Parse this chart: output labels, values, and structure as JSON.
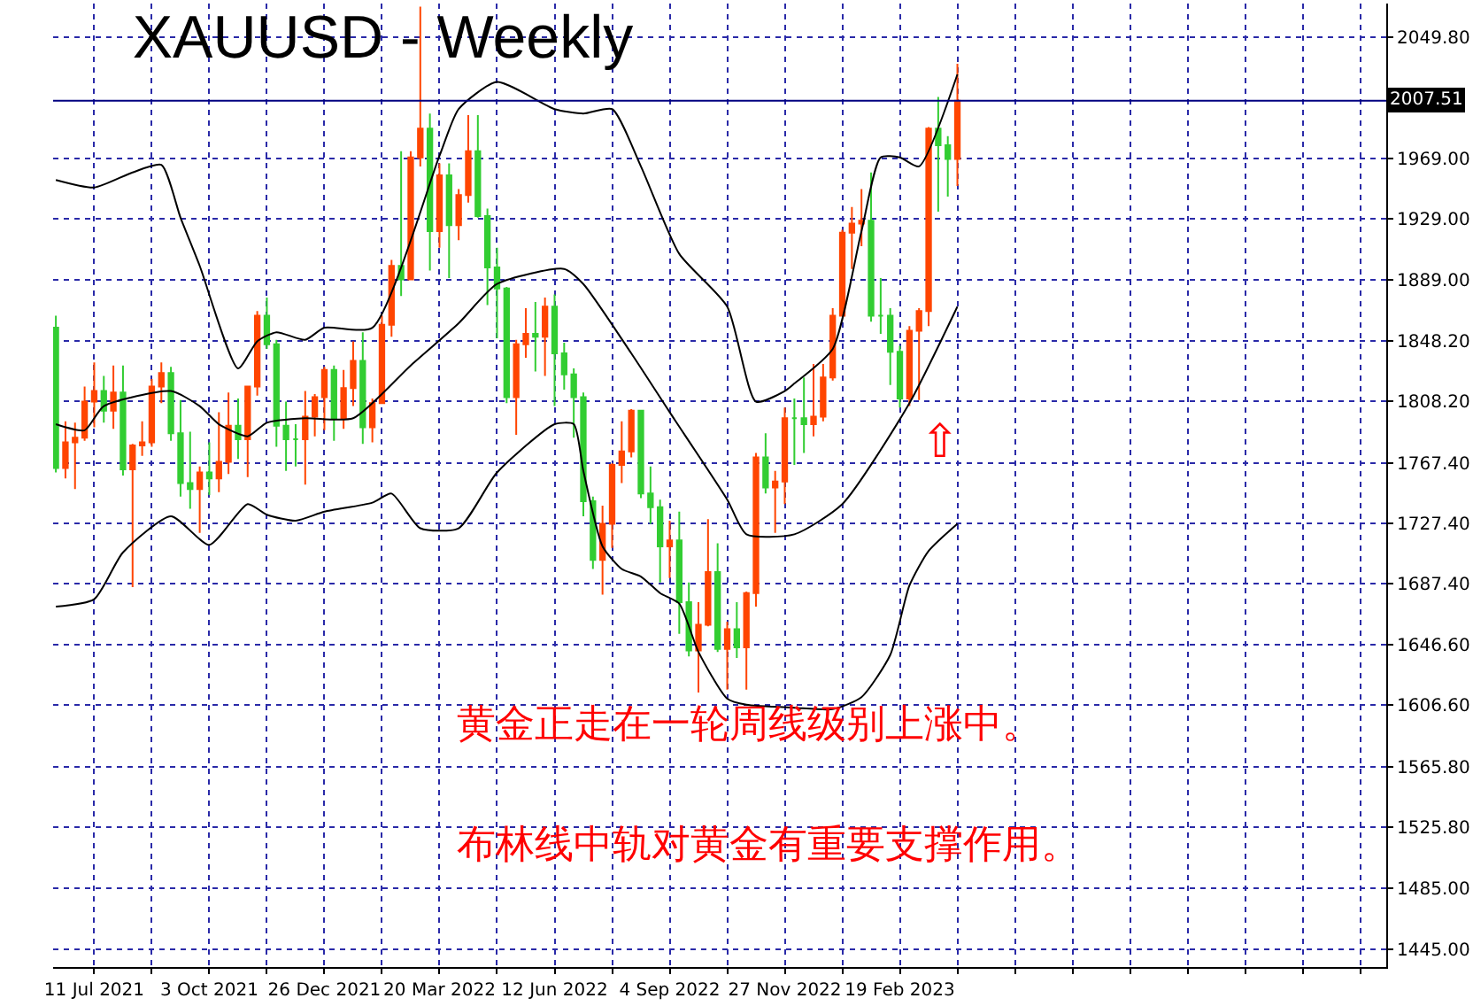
{
  "chart_data": {
    "type": "candlestick",
    "title": "XAUUSD - Weekly",
    "x": [
      "2021-06-13",
      "2021-06-20",
      "2021-06-27",
      "2021-07-04",
      "2021-07-11",
      "2021-07-18",
      "2021-07-25",
      "2021-08-01",
      "2021-08-08",
      "2021-08-15",
      "2021-08-22",
      "2021-08-29",
      "2021-09-05",
      "2021-09-12",
      "2021-09-19",
      "2021-09-26",
      "2021-10-03",
      "2021-10-10",
      "2021-10-17",
      "2021-10-24",
      "2021-10-31",
      "2021-11-07",
      "2021-11-14",
      "2021-11-21",
      "2021-11-28",
      "2021-12-05",
      "2021-12-12",
      "2021-12-19",
      "2021-12-26",
      "2022-01-02",
      "2022-01-09",
      "2022-01-16",
      "2022-01-23",
      "2022-01-30",
      "2022-02-06",
      "2022-02-13",
      "2022-02-20",
      "2022-02-27",
      "2022-03-06",
      "2022-03-13",
      "2022-03-20",
      "2022-03-27",
      "2022-04-03",
      "2022-04-10",
      "2022-04-17",
      "2022-04-24",
      "2022-05-01",
      "2022-05-08",
      "2022-05-15",
      "2022-05-22",
      "2022-05-29",
      "2022-06-05",
      "2022-06-12",
      "2022-06-19",
      "2022-06-26",
      "2022-07-03",
      "2022-07-10",
      "2022-07-17",
      "2022-07-24",
      "2022-07-31",
      "2022-08-07",
      "2022-08-14",
      "2022-08-21",
      "2022-08-28",
      "2022-09-04",
      "2022-09-11",
      "2022-09-18",
      "2022-09-25",
      "2022-10-02",
      "2022-10-09",
      "2022-10-16",
      "2022-10-23",
      "2022-10-30",
      "2022-11-06",
      "2022-11-13",
      "2022-11-20",
      "2022-11-27",
      "2022-12-04",
      "2022-12-11",
      "2022-12-18",
      "2022-12-25",
      "2023-01-01",
      "2023-01-08",
      "2023-01-15",
      "2023-01-22",
      "2023-01-29",
      "2023-02-05",
      "2023-02-12",
      "2023-02-19",
      "2023-02-26",
      "2023-03-05",
      "2023-03-12",
      "2023-03-19",
      "2023-03-26",
      "2023-04-02"
    ],
    "ohlc": [
      [
        1857,
        1865,
        1761,
        1764
      ],
      [
        1764,
        1795,
        1757,
        1781
      ],
      [
        1781,
        1794,
        1750,
        1784
      ],
      [
        1784,
        1818,
        1782,
        1808
      ],
      [
        1808,
        1834,
        1791,
        1815
      ],
      [
        1815,
        1825,
        1794,
        1802
      ],
      [
        1802,
        1832,
        1790,
        1814
      ],
      [
        1814,
        1832,
        1759,
        1763
      ],
      [
        1763,
        1780,
        1685,
        1779
      ],
      [
        1779,
        1795,
        1772,
        1781
      ],
      [
        1781,
        1823,
        1778,
        1818
      ],
      [
        1818,
        1834,
        1807,
        1827
      ],
      [
        1827,
        1831,
        1782,
        1787
      ],
      [
        1787,
        1809,
        1745,
        1754
      ],
      [
        1754,
        1788,
        1737,
        1750
      ],
      [
        1750,
        1765,
        1721,
        1761
      ],
      [
        1761,
        1781,
        1746,
        1757
      ],
      [
        1757,
        1801,
        1748,
        1768
      ],
      [
        1768,
        1814,
        1760,
        1792
      ],
      [
        1792,
        1810,
        1770,
        1783
      ],
      [
        1783,
        1818,
        1758,
        1818
      ],
      [
        1818,
        1868,
        1812,
        1865
      ],
      [
        1865,
        1877,
        1843,
        1846
      ],
      [
        1846,
        1849,
        1778,
        1792
      ],
      [
        1792,
        1808,
        1762,
        1783
      ],
      [
        1783,
        1793,
        1765,
        1783
      ],
      [
        1783,
        1815,
        1753,
        1798
      ],
      [
        1798,
        1813,
        1785,
        1811
      ],
      [
        1811,
        1831,
        1789,
        1829
      ],
      [
        1829,
        1832,
        1782,
        1797
      ],
      [
        1797,
        1829,
        1790,
        1817
      ],
      [
        1817,
        1848,
        1805,
        1835
      ],
      [
        1835,
        1854,
        1780,
        1791
      ],
      [
        1791,
        1810,
        1781,
        1807
      ],
      [
        1807,
        1865,
        1807,
        1859
      ],
      [
        1859,
        1902,
        1851,
        1898
      ],
      [
        1898,
        1974,
        1878,
        1889
      ],
      [
        1889,
        1974,
        1889,
        1970
      ],
      [
        1970,
        2070,
        1964,
        1989
      ],
      [
        1989,
        1999,
        1895,
        1921
      ],
      [
        1921,
        1966,
        1910,
        1958
      ],
      [
        1958,
        1966,
        1890,
        1925
      ],
      [
        1925,
        1949,
        1915,
        1945
      ],
      [
        1945,
        1998,
        1940,
        1974
      ],
      [
        1974,
        1998,
        1930,
        1931
      ],
      [
        1931,
        1936,
        1872,
        1897
      ],
      [
        1897,
        1910,
        1850,
        1883
      ],
      [
        1883,
        1884,
        1807,
        1811
      ],
      [
        1811,
        1849,
        1786,
        1846
      ],
      [
        1846,
        1870,
        1837,
        1853
      ],
      [
        1853,
        1874,
        1828,
        1851
      ],
      [
        1851,
        1877,
        1825,
        1871
      ],
      [
        1871,
        1879,
        1805,
        1840
      ],
      [
        1840,
        1847,
        1816,
        1826
      ],
      [
        1826,
        1830,
        1784,
        1811
      ],
      [
        1811,
        1814,
        1732,
        1742
      ],
      [
        1742,
        1745,
        1697,
        1703
      ],
      [
        1703,
        1739,
        1680,
        1727
      ],
      [
        1727,
        1767,
        1711,
        1766
      ],
      [
        1766,
        1795,
        1754,
        1775
      ],
      [
        1775,
        1803,
        1771,
        1802
      ],
      [
        1802,
        1802,
        1744,
        1747
      ],
      [
        1747,
        1765,
        1727,
        1738
      ],
      [
        1738,
        1743,
        1688,
        1712
      ],
      [
        1712,
        1729,
        1691,
        1716
      ],
      [
        1716,
        1735,
        1654,
        1675
      ],
      [
        1675,
        1688,
        1639,
        1643
      ],
      [
        1643,
        1675,
        1615,
        1660
      ],
      [
        1660,
        1730,
        1659,
        1695
      ],
      [
        1695,
        1714,
        1642,
        1644
      ],
      [
        1644,
        1662,
        1617,
        1657
      ],
      [
        1657,
        1675,
        1638,
        1645
      ],
      [
        1645,
        1682,
        1617,
        1681
      ],
      [
        1681,
        1774,
        1672,
        1771
      ],
      [
        1771,
        1787,
        1747,
        1751
      ],
      [
        1751,
        1762,
        1721,
        1755
      ],
      [
        1755,
        1804,
        1740,
        1797
      ],
      [
        1797,
        1810,
        1766,
        1797
      ],
      [
        1797,
        1824,
        1774,
        1793
      ],
      [
        1793,
        1833,
        1785,
        1798
      ],
      [
        1798,
        1833,
        1795,
        1824
      ],
      [
        1824,
        1870,
        1822,
        1865
      ],
      [
        1865,
        1922,
        1865,
        1920
      ],
      [
        1920,
        1937,
        1896,
        1926
      ],
      [
        1926,
        1949,
        1911,
        1928
      ],
      [
        1928,
        1960,
        1861,
        1865
      ],
      [
        1865,
        1890,
        1853,
        1865
      ],
      [
        1865,
        1870,
        1819,
        1841
      ],
      [
        1841,
        1845,
        1804,
        1810
      ],
      [
        1810,
        1858,
        1805,
        1855
      ],
      [
        1855,
        1870,
        1809,
        1868
      ],
      [
        1868,
        1990,
        1858,
        1989
      ],
      [
        1989,
        2010,
        1934,
        1978
      ],
      [
        1978,
        1984,
        1944,
        1969
      ],
      [
        1969,
        2032,
        1951,
        2007.51
      ]
    ],
    "colors": [
      "#32cd32",
      "#ff4500",
      "#ff4500",
      "#ff4500",
      "#ff4500",
      "#32cd32",
      "#ff4500",
      "#32cd32",
      "#ff4500",
      "#ff4500",
      "#ff4500",
      "#ff4500",
      "#32cd32",
      "#32cd32",
      "#32cd32",
      "#ff4500",
      "#32cd32",
      "#ff4500",
      "#ff4500",
      "#32cd32",
      "#ff4500",
      "#ff4500",
      "#32cd32",
      "#32cd32",
      "#32cd32",
      "#32cd32",
      "#ff4500",
      "#ff4500",
      "#ff4500",
      "#32cd32",
      "#ff4500",
      "#ff4500",
      "#32cd32",
      "#ff4500",
      "#ff4500",
      "#ff4500",
      "#32cd32",
      "#ff4500",
      "#ff4500",
      "#32cd32",
      "#ff4500",
      "#32cd32",
      "#ff4500",
      "#ff4500",
      "#32cd32",
      "#32cd32",
      "#32cd32",
      "#32cd32",
      "#ff4500",
      "#ff4500",
      "#32cd32",
      "#ff4500",
      "#32cd32",
      "#32cd32",
      "#32cd32",
      "#32cd32",
      "#32cd32",
      "#ff4500",
      "#ff4500",
      "#ff4500",
      "#ff4500",
      "#32cd32",
      "#32cd32",
      "#32cd32",
      "#ff4500",
      "#32cd32",
      "#32cd32",
      "#ff4500",
      "#ff4500",
      "#32cd32",
      "#ff4500",
      "#32cd32",
      "#ff4500",
      "#ff4500",
      "#32cd32",
      "#ff4500",
      "#ff4500",
      "#32cd32",
      "#32cd32",
      "#ff4500",
      "#ff4500",
      "#ff4500",
      "#ff4500",
      "#ff4500",
      "#ff4500",
      "#32cd32",
      "#32cd32",
      "#32cd32",
      "#32cd32",
      "#ff4500",
      "#ff4500",
      "#ff4500",
      "#32cd32",
      "#32cd32",
      "#ff4500"
    ],
    "series": [
      {
        "type": "line",
        "color": "#000000",
        "x": [
          "2021-06-13",
          "2021-07-11",
          "2021-08-08",
          "2021-08-29",
          "2021-09-12",
          "2021-09-26",
          "2021-10-24",
          "2021-11-07",
          "2021-11-21",
          "2021-12-12",
          "2021-12-26",
          "2022-01-30",
          "2022-03-20",
          "2022-04-03",
          "2022-05-01",
          "2022-06-12",
          "2022-07-03",
          "2022-07-24",
          "2022-08-14",
          "2022-09-11",
          "2022-10-16",
          "2022-11-06",
          "2022-11-27",
          "2022-12-04",
          "2023-01-01",
          "2023-01-22",
          "2023-02-05",
          "2023-02-19",
          "2023-03-05",
          "2023-04-02"
        ],
        "values": [
          1955,
          1950,
          1960,
          1965,
          1930,
          1898,
          1830,
          1848,
          1854,
          1849,
          1857,
          1857,
          1971,
          2002,
          2020,
          2002,
          1999,
          2002,
          1964,
          1906,
          1871,
          1808,
          1815,
          1820,
          1843,
          1921,
          1970,
          1970,
          1964,
          2025
        ]
      },
      {
        "type": "line",
        "color": "#000000",
        "x": [
          "2021-06-13",
          "2021-07-04",
          "2021-07-18",
          "2021-09-05",
          "2021-09-26",
          "2021-10-10",
          "2021-10-31",
          "2021-11-14",
          "2021-12-12",
          "2022-01-16",
          "2022-02-27",
          "2022-04-03",
          "2022-05-01",
          "2022-06-19",
          "2022-07-03",
          "2022-08-07",
          "2022-09-04",
          "2022-10-16",
          "2022-10-30",
          "2022-12-04",
          "2023-01-08",
          "2023-02-26",
          "2023-04-02"
        ],
        "values": [
          1793,
          1789,
          1805,
          1815,
          1805,
          1793,
          1785,
          1794,
          1797,
          1797,
          1832,
          1860,
          1886,
          1896,
          1886,
          1840,
          1801,
          1743,
          1720,
          1720,
          1740,
          1807,
          1871
        ]
      },
      {
        "type": "line",
        "color": "#000000",
        "x": [
          "2021-06-13",
          "2021-07-11",
          "2021-08-01",
          "2021-09-05",
          "2021-10-03",
          "2021-10-31",
          "2021-11-14",
          "2021-12-05",
          "2021-12-26",
          "2022-01-30",
          "2022-02-13",
          "2022-03-06",
          "2022-04-03",
          "2022-05-01",
          "2022-06-12",
          "2022-06-26",
          "2022-07-03",
          "2022-07-17",
          "2022-07-31",
          "2022-08-14",
          "2022-08-28",
          "2022-09-11",
          "2022-09-25",
          "2022-10-16",
          "2022-10-30",
          "2022-12-04",
          "2023-01-01",
          "2023-01-22",
          "2023-02-12",
          "2023-02-26",
          "2023-03-12",
          "2023-04-02"
        ],
        "values": [
          1672,
          1677,
          1708,
          1732,
          1713,
          1740,
          1733,
          1729,
          1735,
          1741,
          1747,
          1724,
          1724,
          1761,
          1793,
          1793,
          1762,
          1712,
          1697,
          1692,
          1681,
          1674,
          1642,
          1611,
          1607,
          1605,
          1604,
          1612,
          1640,
          1686,
          1709,
          1727
        ]
      }
    ],
    "xlim": [
      "2021-06-11",
      "2024-02-09"
    ],
    "xticks": [
      {
        "value": "2021-07-11",
        "label": "11 Jul 2021"
      },
      {
        "value": "2021-08-22",
        "label": null
      },
      {
        "value": "2021-10-03",
        "label": "3 Oct 2021"
      },
      {
        "value": "2021-11-14",
        "label": null
      },
      {
        "value": "2021-12-26",
        "label": "26 Dec 2021"
      },
      {
        "value": "2022-02-06",
        "label": null
      },
      {
        "value": "2022-03-20",
        "label": "20 Mar 2022"
      },
      {
        "value": "2022-05-01",
        "label": null
      },
      {
        "value": "2022-06-12",
        "label": "12 Jun 2022"
      },
      {
        "value": "2022-07-24",
        "label": null
      },
      {
        "value": "2022-09-04",
        "label": "4 Sep 2022"
      },
      {
        "value": "2022-10-16",
        "label": null
      },
      {
        "value": "2022-11-27",
        "label": "27 Nov 2022"
      },
      {
        "value": "2023-01-08",
        "label": null
      },
      {
        "value": "2023-02-19",
        "label": "19 Feb 2023"
      },
      {
        "value": "2023-04-02",
        "label": null
      },
      {
        "value": "2023-05-14",
        "label": null
      },
      {
        "value": "2023-06-25",
        "label": null
      },
      {
        "value": "2023-08-06",
        "label": null
      },
      {
        "value": "2023-09-17",
        "label": null
      },
      {
        "value": "2023-10-29",
        "label": null
      },
      {
        "value": "2023-12-10",
        "label": null
      },
      {
        "value": "2024-01-21",
        "label": null
      }
    ],
    "ylim": [
      1433,
      2072
    ],
    "yticks": [
      {
        "value": 2049.8,
        "label": "2049.80"
      },
      {
        "value": 1969,
        "label": "1969.00"
      },
      {
        "value": 1929,
        "label": "1929.00"
      },
      {
        "value": 1889,
        "label": "1889.00"
      },
      {
        "value": 1848.2,
        "label": "1848.20"
      },
      {
        "value": 1808.2,
        "label": "1808.20"
      },
      {
        "value": 1767.4,
        "label": "1767.40"
      },
      {
        "value": 1727.4,
        "label": "1727.40"
      },
      {
        "value": 1687.4,
        "label": "1687.40"
      },
      {
        "value": 1646.6,
        "label": "1646.60"
      },
      {
        "value": 1606.6,
        "label": "1606.60"
      },
      {
        "value": 1565.8,
        "label": "1565.80"
      },
      {
        "value": 1525.8,
        "label": "1525.80"
      },
      {
        "value": 1485,
        "label": "1485.00"
      },
      {
        "value": 1445,
        "label": "1445.00"
      }
    ],
    "ref_lines": [
      {
        "axis": "y",
        "value": 2007.51,
        "label": "2007.51",
        "color": "#000080",
        "line_style": "solid"
      }
    ],
    "annotations": [
      "⇧",
      "黄金正走在一轮周线级别上涨中。",
      "布林线中轨对黄金有重要支撑作用。"
    ],
    "grid": true
  }
}
